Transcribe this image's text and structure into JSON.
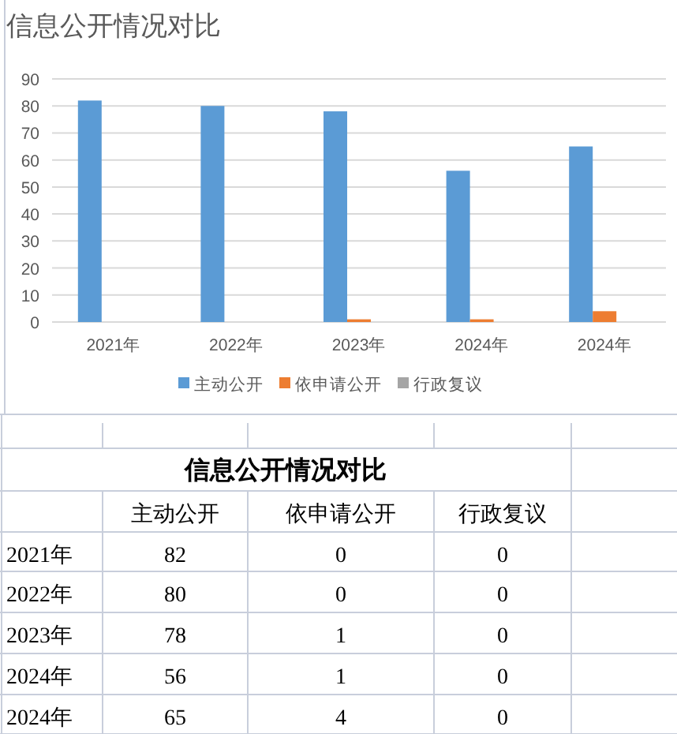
{
  "chart_data": [
    {
      "type": "bar",
      "title": "信息公开情况对比",
      "categories": [
        "2021年",
        "2022年",
        "2023年",
        "2024年",
        "2024年"
      ],
      "series": [
        {
          "name": "主动公开",
          "color": "#5b9bd5",
          "values": [
            82,
            80,
            78,
            56,
            65
          ]
        },
        {
          "name": "依申请公开",
          "color": "#ed7d31",
          "values": [
            0,
            0,
            1,
            1,
            4
          ]
        },
        {
          "name": "行政复议",
          "color": "#a5a5a5",
          "values": [
            0,
            0,
            0,
            0,
            0
          ]
        }
      ],
      "ylim": [
        0,
        90
      ],
      "yticks": [
        0,
        10,
        20,
        30,
        40,
        50,
        60,
        70,
        80,
        90
      ],
      "grid": "y",
      "legend": "bottom"
    },
    {
      "type": "heatmap",
      "title": "信息公开情况对比",
      "categories": [
        "主动公开",
        "依申请公开",
        "行政复议"
      ],
      "y_categories": [
        "2021年",
        "2022年",
        "2023年",
        "2024年",
        "2024年"
      ],
      "cells": [
        [
          82,
          0,
          0
        ],
        [
          80,
          0,
          0
        ],
        [
          78,
          1,
          0
        ],
        [
          56,
          1,
          0
        ],
        [
          65,
          4,
          0
        ]
      ],
      "data_labels": true
    }
  ]
}
